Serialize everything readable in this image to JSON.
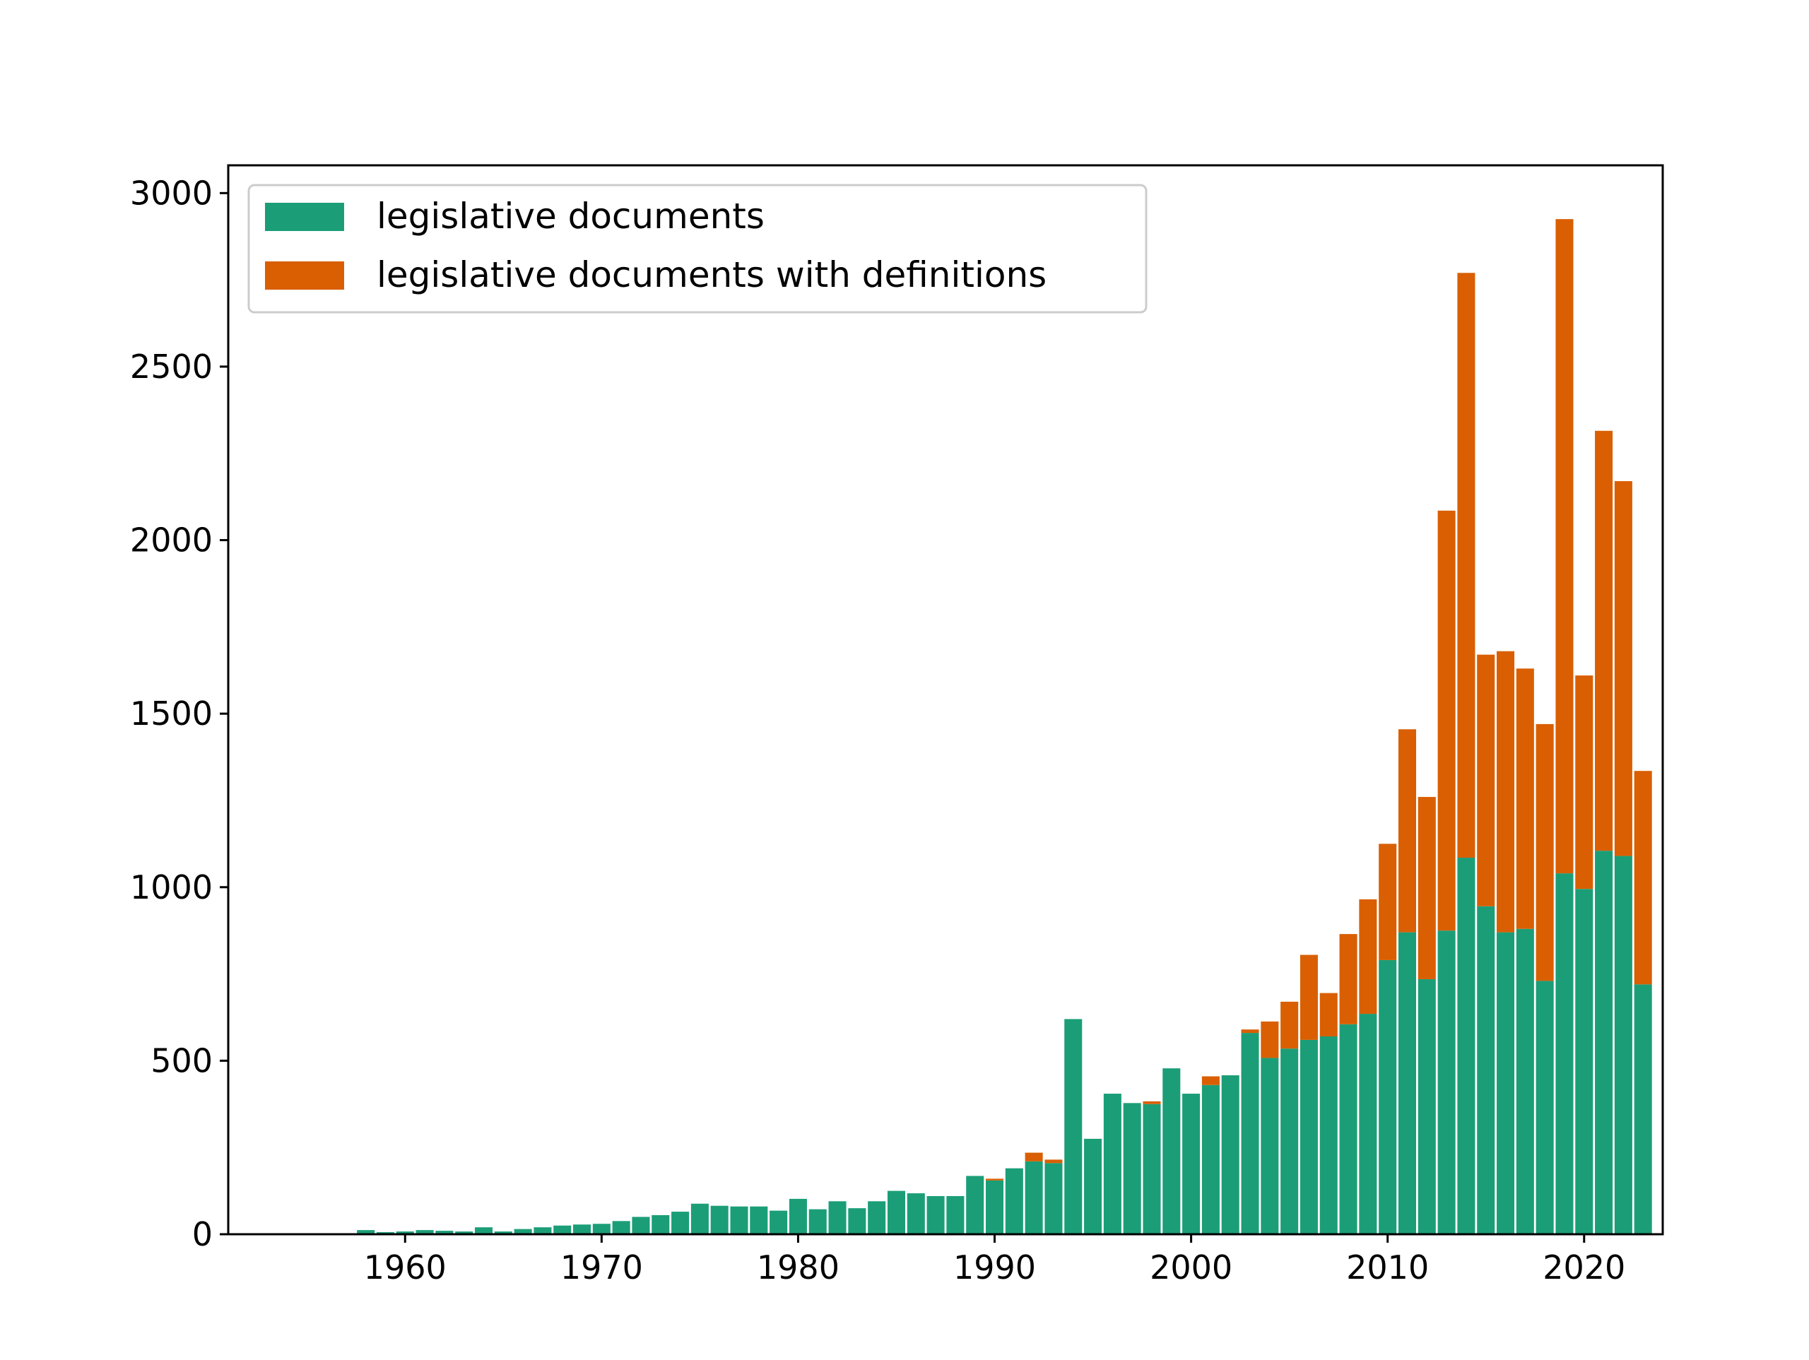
{
  "chart_data": {
    "type": "bar",
    "stacked": true,
    "title": "",
    "xlabel": "",
    "ylabel": "",
    "xlim": [
      1951,
      2024
    ],
    "ylim": [
      0,
      3080
    ],
    "x_ticks": [
      1960,
      1970,
      1980,
      1990,
      2000,
      2010,
      2020
    ],
    "y_ticks": [
      0,
      500,
      1000,
      1500,
      2000,
      2500,
      3000
    ],
    "grid": false,
    "legend_position": "top-left",
    "x": [
      1958,
      1959,
      1960,
      1961,
      1962,
      1963,
      1964,
      1965,
      1966,
      1967,
      1968,
      1969,
      1970,
      1971,
      1972,
      1973,
      1974,
      1975,
      1976,
      1977,
      1978,
      1979,
      1980,
      1981,
      1982,
      1983,
      1984,
      1985,
      1986,
      1987,
      1988,
      1989,
      1990,
      1991,
      1992,
      1993,
      1994,
      1995,
      1996,
      1997,
      1998,
      1999,
      2000,
      2001,
      2002,
      2003,
      2004,
      2005,
      2006,
      2007,
      2008,
      2009,
      2010,
      2011,
      2012,
      2013,
      2014,
      2015,
      2016,
      2017,
      2018,
      2019,
      2020,
      2021,
      2022,
      2023
    ],
    "series": [
      {
        "name": "legislative documents",
        "color": "#1b9e77",
        "values": [
          12,
          6,
          8,
          12,
          10,
          8,
          20,
          8,
          15,
          20,
          25,
          28,
          30,
          38,
          50,
          55,
          65,
          88,
          82,
          80,
          80,
          68,
          102,
          72,
          95,
          75,
          95,
          125,
          118,
          110,
          110,
          168,
          155,
          190,
          210,
          205,
          620,
          275,
          405,
          378,
          375,
          478,
          405,
          430,
          458,
          580,
          508,
          535,
          560,
          570,
          605,
          635,
          790,
          870,
          735,
          875,
          1085,
          945,
          870,
          880,
          730,
          1040,
          995,
          1105,
          1090,
          720
        ]
      },
      {
        "name": "legislative documents with definitions",
        "color": "#d95f02",
        "values": [
          0,
          0,
          0,
          0,
          0,
          0,
          0,
          0,
          0,
          0,
          0,
          0,
          0,
          0,
          0,
          0,
          0,
          0,
          0,
          0,
          0,
          0,
          0,
          0,
          0,
          0,
          0,
          0,
          0,
          0,
          0,
          0,
          5,
          0,
          25,
          10,
          0,
          0,
          0,
          0,
          8,
          0,
          0,
          25,
          0,
          10,
          105,
          135,
          245,
          125,
          260,
          330,
          335,
          585,
          525,
          1210,
          1685,
          725,
          810,
          750,
          740,
          1885,
          615,
          1210,
          1080,
          615
        ]
      }
    ]
  }
}
